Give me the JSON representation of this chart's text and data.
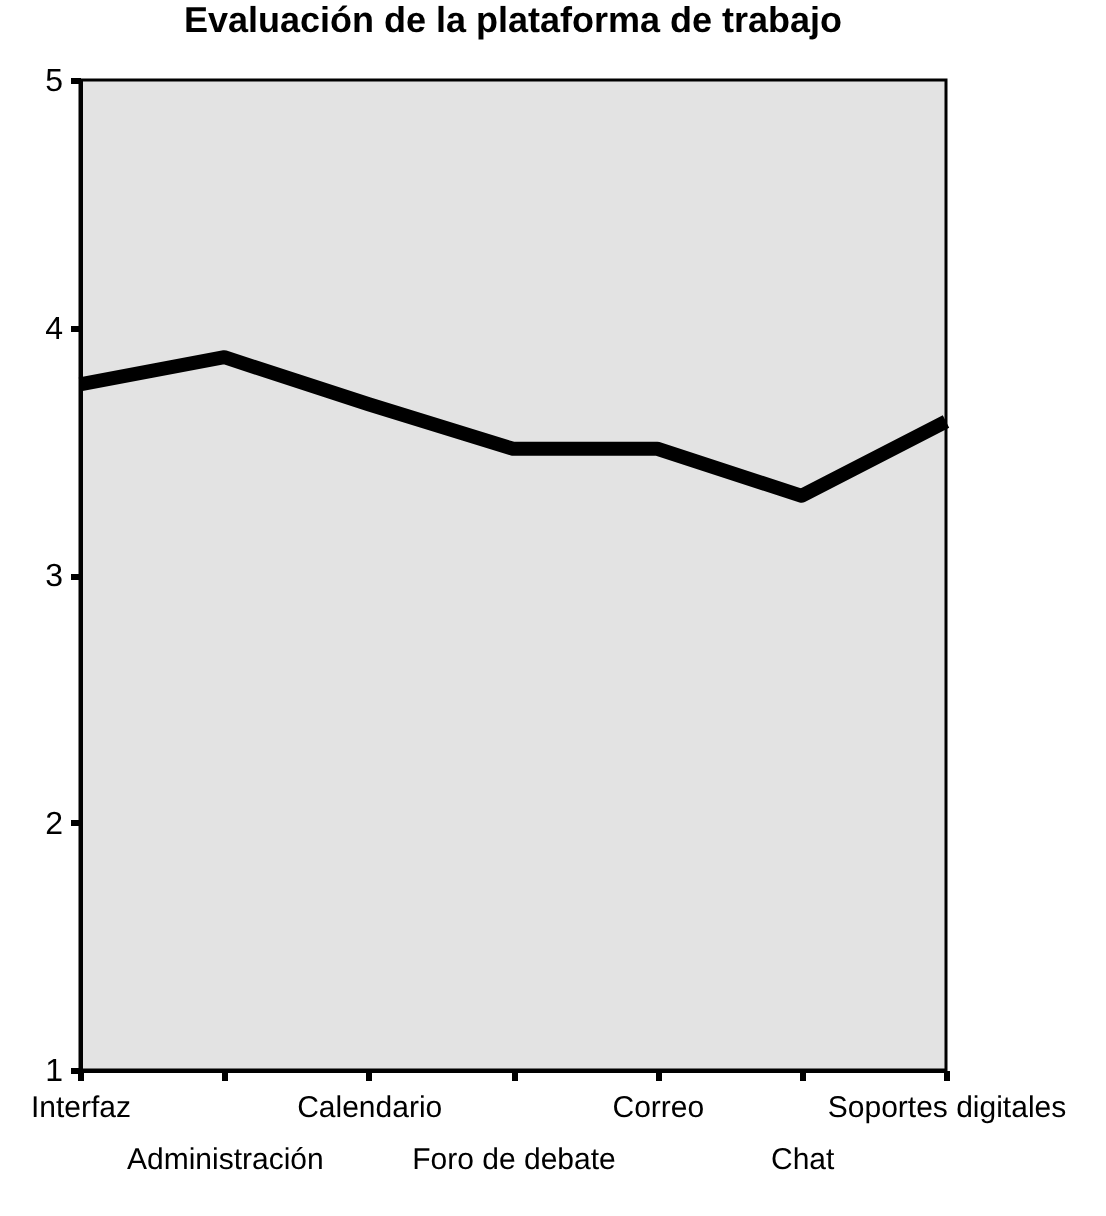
{
  "chart_data": {
    "type": "line",
    "title": "Evaluación de la plataforma de trabajo",
    "categories": [
      "Interfaz",
      "Administración",
      "Calendario",
      "Foro de debate",
      "Correo",
      "Chat",
      "Soportes digitales"
    ],
    "series": [
      {
        "color": "#000000",
        "values": [
          3.77,
          3.88,
          3.69,
          3.51,
          3.51,
          3.32,
          3.62
        ]
      }
    ],
    "ylim": [
      1,
      5
    ],
    "yticks": [
      1,
      2,
      3,
      4,
      5
    ],
    "grid": false,
    "legend": false,
    "marker": "none",
    "line_style": "solid"
  }
}
